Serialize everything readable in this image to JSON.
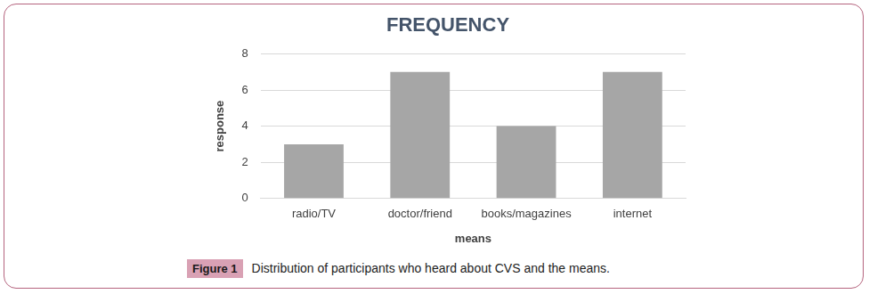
{
  "chart_data": {
    "type": "bar",
    "title": "FREQUENCY",
    "x_label": "means",
    "y_label": "response",
    "categories": [
      "radio/TV",
      "doctor/friend",
      "books/magazines",
      "internet"
    ],
    "values": [
      3,
      7,
      4,
      7
    ],
    "color": "#a6a6a6",
    "ylim": [
      0,
      8
    ],
    "yticks": [
      0,
      2,
      4,
      6,
      8
    ],
    "grid": true
  },
  "caption": {
    "label": "Figure 1",
    "text": "Distribution of participants who heard about CVS and the means."
  }
}
